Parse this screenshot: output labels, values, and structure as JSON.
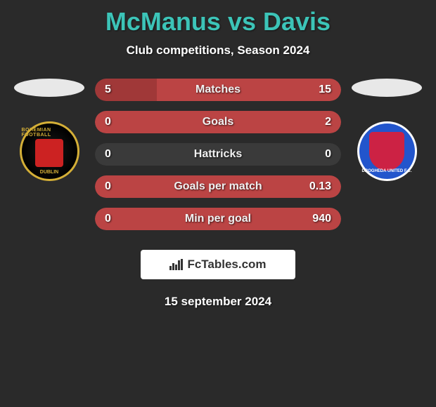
{
  "title": "McManus vs Davis",
  "subtitle": "Club competitions, Season 2024",
  "date": "15 september 2024",
  "fctables": "FcTables.com",
  "colors": {
    "left_bar": "#a03838",
    "right_bar": "#bb4444",
    "neutral_bar": "#3a3a3a",
    "title_color": "#3cc4b8"
  },
  "left_club": {
    "name_top": "BOHEMIAN FOOTBALL",
    "name_bottom": "DUBLIN"
  },
  "right_club": {
    "name": "DROGHEDA UNITED F.C."
  },
  "stats": [
    {
      "label": "Matches",
      "left_value": "5",
      "right_value": "15",
      "left_width_pct": 25,
      "right_width_pct": 75,
      "left_color": "#a03838",
      "right_color": "#bb4444"
    },
    {
      "label": "Goals",
      "left_value": "0",
      "right_value": "2",
      "left_width_pct": 0,
      "right_width_pct": 100,
      "left_color": "#a03838",
      "right_color": "#bb4444"
    },
    {
      "label": "Hattricks",
      "left_value": "0",
      "right_value": "0",
      "left_width_pct": 0,
      "right_width_pct": 0,
      "left_color": "#3a3a3a",
      "right_color": "#3a3a3a"
    },
    {
      "label": "Goals per match",
      "left_value": "0",
      "right_value": "0.13",
      "left_width_pct": 0,
      "right_width_pct": 100,
      "left_color": "#a03838",
      "right_color": "#bb4444"
    },
    {
      "label": "Min per goal",
      "left_value": "0",
      "right_value": "940",
      "left_width_pct": 0,
      "right_width_pct": 100,
      "left_color": "#a03838",
      "right_color": "#bb4444"
    }
  ]
}
